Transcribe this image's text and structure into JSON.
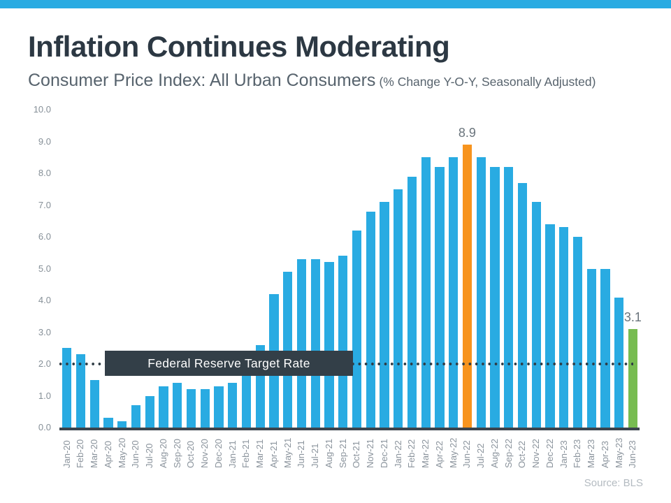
{
  "page": {
    "title": "Inflation Continues Moderating",
    "subtitle": "Consumer Price Index: All Urban Consumers",
    "subtitle_note": "(% Change Y-O-Y, Seasonally Adjusted)",
    "source": "Source: BLS"
  },
  "colors": {
    "top_strip": "#29ABE2",
    "bar_default": "#29ABE2",
    "highlight_orange": "#F7941E",
    "highlight_green": "#77BC51",
    "annotation_box": "#333F48",
    "annotation_text": "#FFFFFF",
    "dotted_line": "#2E3B44",
    "axis_line": "#3A444D",
    "title_text": "#2C3843",
    "subtitle_text": "#57636D",
    "tick_text": "#8A939C",
    "source_text": "#B4BBC1"
  },
  "chart_data": {
    "type": "bar",
    "title": "Inflation Continues Moderating",
    "subtitle": "Consumer Price Index: All Urban Consumers",
    "subtitle_note": "(% Change Y-O-Y, Seasonally Adjusted)",
    "source": "Source: BLS",
    "xlabel": "",
    "ylabel": "",
    "ylim": [
      0,
      10
    ],
    "y_ticks": [
      "0.0",
      "1.0",
      "2.0",
      "3.0",
      "4.0",
      "5.0",
      "6.0",
      "7.0",
      "8.0",
      "9.0",
      "10.0"
    ],
    "grid": false,
    "legend": false,
    "categories": [
      "Jan-20",
      "Feb-20",
      "Mar-20",
      "Apr-20",
      "May-20",
      "Jun-20",
      "Jul-20",
      "Aug-20",
      "Sep-20",
      "Oct-20",
      "Nov-20",
      "Dec-20",
      "Jan-21",
      "Feb-21",
      "Mar-21",
      "Apr-21",
      "May-21",
      "Jun-21",
      "Jul-21",
      "Aug-21",
      "Sep-21",
      "Oct-21",
      "Nov-21",
      "Dec-21",
      "Jan-22",
      "Feb-22",
      "Mar-22",
      "Apr-22",
      "May-22",
      "Jun-22",
      "Jul-22",
      "Aug-22",
      "Sep-22",
      "Oct-22",
      "Nov-22",
      "Dec-22",
      "Jan-23",
      "Feb-23",
      "Mar-23",
      "Apr-23",
      "May-23",
      "Jun-23"
    ],
    "values": [
      2.5,
      2.3,
      1.5,
      0.3,
      0.2,
      0.7,
      1.0,
      1.3,
      1.4,
      1.2,
      1.2,
      1.3,
      1.4,
      1.7,
      2.6,
      4.2,
      4.9,
      5.3,
      5.3,
      5.2,
      5.4,
      6.2,
      6.8,
      7.1,
      7.5,
      7.9,
      8.5,
      8.2,
      8.5,
      8.9,
      8.5,
      8.2,
      8.2,
      7.7,
      7.1,
      6.4,
      6.3,
      6.0,
      5.0,
      5.0,
      4.1,
      3.1
    ],
    "highlighted_bars": [
      {
        "category": "Jun-22",
        "value": 8.9,
        "label": "8.9",
        "color": "#F7941E"
      },
      {
        "category": "Jun-23",
        "value": 3.1,
        "label": "3.1",
        "color": "#77BC51"
      }
    ],
    "reference_line": {
      "value": 2.0,
      "label": "Federal Reserve Target Rate",
      "style": "dotted"
    }
  }
}
